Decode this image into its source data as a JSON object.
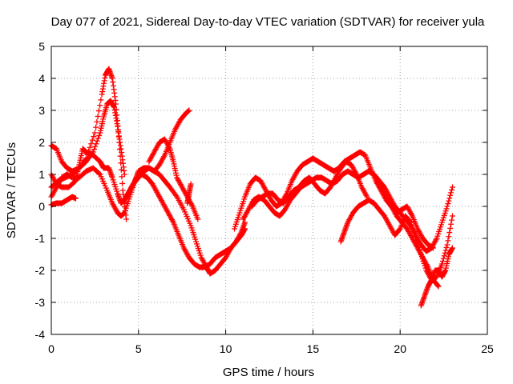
{
  "chart_data": {
    "type": "scatter",
    "title": "Day 077 of 2021, Sidereal Day-to-day VTEC variation (SDTVAR) for receiver yula",
    "xlabel": "GPS time / hours",
    "ylabel": "SDTVAR / TECUs",
    "xlim": [
      0,
      25
    ],
    "ylim": [
      -4,
      5
    ],
    "x_ticks": [
      0,
      5,
      10,
      15,
      20,
      25
    ],
    "y_ticks": [
      -4,
      -3,
      -2,
      -1,
      0,
      1,
      2,
      3,
      4,
      5
    ],
    "x_tick_labels": [
      "0",
      "5",
      "10",
      "15",
      "20",
      "25"
    ],
    "y_tick_labels": [
      "-4",
      "-3",
      "-2",
      "-1",
      "0",
      "1",
      "2",
      "3",
      "4",
      "5"
    ],
    "grid": true,
    "marker": "plus",
    "color": "#ff0000",
    "series": [
      {
        "x": [
          0.0,
          0.3,
          0.6,
          0.9,
          1.2,
          1.6,
          2.0,
          2.5,
          2.9,
          3.1,
          3.3,
          3.5,
          3.7,
          3.9,
          4.1,
          4.3
        ],
        "y": [
          1.9,
          1.8,
          1.4,
          1.2,
          1.1,
          1.2,
          1.5,
          2.3,
          3.5,
          4.1,
          4.3,
          4.0,
          3.2,
          2.0,
          0.5,
          -0.4
        ]
      },
      {
        "x": [
          0.0,
          0.4,
          0.8,
          1.2,
          1.6,
          2.0,
          2.4,
          2.8,
          3.0,
          3.2,
          3.4,
          3.6,
          3.8,
          4.0,
          4.2
        ],
        "y": [
          0.6,
          0.8,
          0.9,
          1.0,
          1.2,
          1.4,
          1.7,
          2.3,
          2.8,
          3.2,
          3.3,
          3.1,
          2.5,
          1.8,
          1.0
        ]
      },
      {
        "x": [
          0.0,
          0.3,
          0.6,
          1.0,
          1.4,
          1.6,
          1.8,
          2.0,
          2.4,
          2.8,
          3.0,
          3.3,
          3.5,
          3.8,
          4.0,
          4.2,
          4.4,
          4.6
        ],
        "y": [
          1.0,
          0.7,
          0.6,
          0.6,
          0.8,
          1.3,
          1.8,
          1.7,
          1.6,
          1.4,
          1.2,
          1.2,
          0.9,
          0.4,
          0.1,
          0.2,
          0.4,
          0.6
        ]
      },
      {
        "x": [
          0.0,
          0.3,
          0.6,
          0.9,
          1.2,
          1.4
        ],
        "y": [
          0.05,
          0.1,
          0.1,
          0.2,
          0.3,
          0.25
        ]
      },
      {
        "x": [
          0.0,
          0.3,
          0.6,
          0.9,
          1.2,
          1.6,
          2.0,
          2.4,
          2.8,
          3.2,
          3.5,
          3.8,
          4.0,
          4.2,
          4.5,
          4.8,
          5.0,
          5.3,
          5.6,
          5.9,
          6.2,
          6.5,
          6.8,
          7.1,
          7.4,
          7.7,
          7.9
        ],
        "y": [
          0.3,
          0.6,
          0.9,
          1.0,
          0.9,
          0.9,
          1.1,
          1.2,
          1.0,
          0.5,
          0.1,
          -0.2,
          -0.3,
          -0.2,
          0.3,
          0.8,
          1.1,
          1.2,
          1.2,
          1.1,
          1.3,
          1.6,
          2.0,
          2.4,
          2.7,
          2.9,
          3.0
        ]
      },
      {
        "x": [
          4.4,
          4.7,
          5.0,
          5.3,
          5.6,
          5.9,
          6.2,
          6.5,
          6.8,
          7.2,
          7.6,
          8.0,
          8.3,
          8.6,
          8.9,
          9.1,
          9.4,
          9.7,
          10.0,
          10.3,
          10.6,
          10.9,
          11.1
        ],
        "y": [
          0.4,
          0.7,
          0.9,
          1.1,
          1.2,
          1.1,
          1.0,
          0.8,
          0.6,
          0.3,
          -0.1,
          -0.6,
          -1.1,
          -1.6,
          -1.9,
          -2.1,
          -2.0,
          -1.8,
          -1.6,
          -1.3,
          -1.1,
          -0.8,
          -0.5
        ]
      },
      {
        "x": [
          4.6,
          4.9,
          5.2,
          5.5,
          5.8,
          6.1,
          6.4,
          6.7,
          7.0,
          7.3,
          7.6,
          7.9,
          8.2,
          8.5,
          8.8,
          9.1,
          9.4,
          9.7,
          10.0,
          10.3,
          10.6,
          10.9,
          11.1
        ],
        "y": [
          0.6,
          0.9,
          1.0,
          0.9,
          0.7,
          0.4,
          0.1,
          -0.2,
          -0.5,
          -0.9,
          -1.3,
          -1.6,
          -1.8,
          -1.9,
          -1.9,
          -1.8,
          -1.6,
          -1.5,
          -1.4,
          -1.3,
          -1.1,
          -0.9,
          -0.7
        ]
      },
      {
        "x": [
          5.6,
          5.9,
          6.2,
          6.5,
          6.8,
          7.0,
          7.2,
          7.5,
          7.8,
          8.1,
          8.4
        ],
        "y": [
          1.4,
          1.7,
          2.0,
          2.1,
          1.8,
          1.4,
          0.9,
          0.6,
          0.3,
          0.0,
          -0.4
        ]
      },
      {
        "x": [
          7.8,
          7.9,
          8.0
        ],
        "y": [
          0.1,
          0.4,
          0.7
        ]
      },
      {
        "x": [
          10.5,
          10.8,
          11.1,
          11.4,
          11.7,
          12.0,
          12.3,
          12.6,
          12.9,
          13.2,
          13.5,
          13.8,
          14.1,
          14.4,
          14.7,
          15.0,
          15.3,
          15.6,
          15.9,
          16.2,
          16.5,
          16.8,
          17.1,
          17.4,
          17.7,
          18.0,
          18.3,
          18.6,
          18.9,
          19.2,
          19.5,
          19.8,
          20.1,
          20.4,
          20.7,
          21.0,
          21.3,
          21.6,
          21.9,
          22.2
        ],
        "y": [
          -0.7,
          -0.2,
          0.3,
          0.7,
          0.9,
          0.8,
          0.5,
          0.2,
          0.0,
          0.1,
          0.4,
          0.8,
          1.1,
          1.3,
          1.4,
          1.5,
          1.4,
          1.3,
          1.2,
          1.1,
          1.2,
          1.4,
          1.5,
          1.6,
          1.7,
          1.6,
          1.2,
          0.8,
          0.5,
          0.2,
          0.0,
          -0.3,
          -0.5,
          -0.7,
          -1.0,
          -1.3,
          -1.6,
          -1.9,
          -2.3,
          -2.5
        ]
      },
      {
        "x": [
          11.0,
          11.3,
          11.6,
          11.9,
          12.2,
          12.5,
          12.8,
          13.1,
          13.4,
          13.7,
          14.0,
          14.3,
          14.6,
          14.9,
          15.2,
          15.5,
          15.8,
          16.1,
          16.4,
          16.7,
          17.0,
          17.3,
          17.6,
          17.9,
          18.2,
          18.5,
          18.8,
          19.1,
          19.4,
          19.7,
          20.0,
          20.3,
          20.6,
          20.9,
          21.2,
          21.5,
          21.8,
          22.1,
          22.4,
          22.7,
          23.0
        ],
        "y": [
          -0.4,
          -0.1,
          0.2,
          0.3,
          0.2,
          0.0,
          -0.2,
          -0.3,
          -0.1,
          0.2,
          0.4,
          0.6,
          0.7,
          0.8,
          0.9,
          0.9,
          0.8,
          0.7,
          0.8,
          1.0,
          1.1,
          1.0,
          0.9,
          1.0,
          1.1,
          1.0,
          0.8,
          0.6,
          0.3,
          0.0,
          -0.2,
          -0.4,
          -0.6,
          -0.9,
          -1.2,
          -1.4,
          -1.3,
          -1.0,
          -0.5,
          0.0,
          0.6
        ]
      },
      {
        "x": [
          11.5,
          11.8,
          12.1,
          12.4,
          12.7,
          13.0,
          13.3,
          13.6,
          13.9,
          14.2,
          14.5,
          14.8,
          15.1,
          15.4,
          15.7,
          16.0,
          16.3,
          16.6,
          16.9,
          17.2,
          17.5,
          17.8,
          18.1
        ],
        "y": [
          0.0,
          0.2,
          0.3,
          0.4,
          0.4,
          0.2,
          0.1,
          0.3,
          0.5,
          0.6,
          0.8,
          0.9,
          0.7,
          0.5,
          0.4,
          0.6,
          0.9,
          1.2,
          1.4,
          1.3,
          1.0,
          0.6,
          0.3
        ]
      },
      {
        "x": [
          16.6,
          16.8,
          17.0,
          17.3,
          17.6,
          17.9,
          18.2,
          18.5,
          18.8,
          19.1,
          19.4,
          19.7,
          20.0,
          20.3,
          20.6,
          20.9,
          21.2,
          21.5,
          21.8,
          22.1,
          22.4,
          22.7,
          23.0
        ],
        "y": [
          -1.1,
          -0.8,
          -0.5,
          -0.2,
          0.0,
          0.1,
          0.2,
          0.1,
          -0.1,
          -0.3,
          -0.6,
          -0.9,
          -0.7,
          -0.3,
          -0.5,
          -1.0,
          -1.5,
          -2.0,
          -2.3,
          -2.2,
          -1.8,
          -1.2,
          -0.3
        ]
      },
      {
        "x": [
          21.2,
          21.4,
          21.6,
          21.8,
          22.0,
          22.2,
          22.4,
          22.6,
          22.8,
          23.0
        ],
        "y": [
          -3.1,
          -2.8,
          -2.5,
          -2.3,
          -2.0,
          -2.0,
          -2.2,
          -2.0,
          -1.5,
          -1.3
        ]
      },
      {
        "x": [
          18.9,
          19.2,
          19.5,
          19.8,
          20.1,
          20.4,
          20.7,
          21.0,
          21.3,
          21.6,
          21.9
        ],
        "y": [
          0.6,
          0.3,
          0.0,
          -0.2,
          -0.1,
          0.0,
          -0.3,
          -0.7,
          -1.0,
          -1.2,
          -1.3
        ]
      }
    ]
  }
}
